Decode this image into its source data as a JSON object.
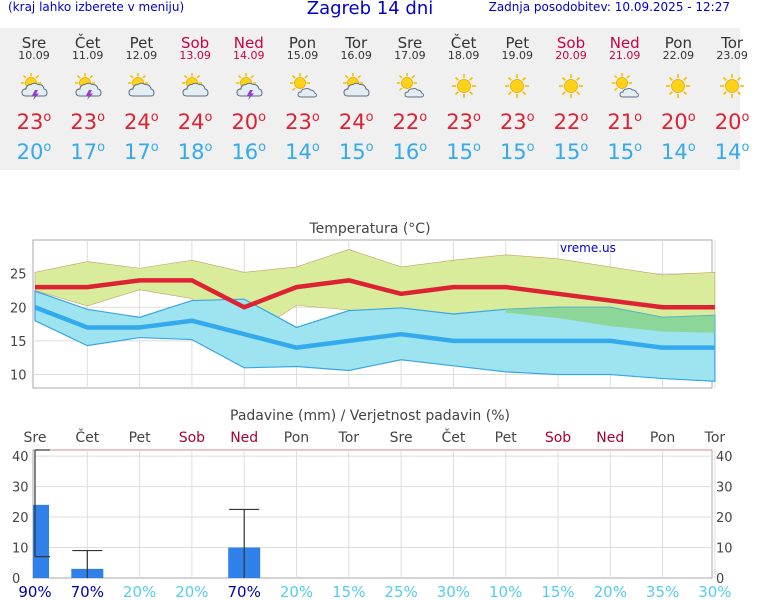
{
  "header": {
    "menu_hint": "(kraj lahko izberete v meniju)",
    "title": "Zagreb 14 dni",
    "updated": "Zadnja posodobitev: 10.09.2025 - 12:27"
  },
  "days": [
    {
      "name": "Sre",
      "date": "10.09",
      "weekend": false,
      "icon": "sun-cloud-storm-icon",
      "tmax": "23",
      "tmin": "20"
    },
    {
      "name": "Čet",
      "date": "11.09",
      "weekend": false,
      "icon": "sun-cloud-storm-icon",
      "tmax": "23",
      "tmin": "17"
    },
    {
      "name": "Pet",
      "date": "12.09",
      "weekend": false,
      "icon": "sun-cloud-icon",
      "tmax": "24",
      "tmin": "17"
    },
    {
      "name": "Sob",
      "date": "13.09",
      "weekend": true,
      "icon": "sun-cloud-icon",
      "tmax": "24",
      "tmin": "18"
    },
    {
      "name": "Ned",
      "date": "14.09",
      "weekend": true,
      "icon": "sun-cloud-storm-icon",
      "tmax": "20",
      "tmin": "16"
    },
    {
      "name": "Pon",
      "date": "15.09",
      "weekend": false,
      "icon": "sun-small-cloud-icon",
      "tmax": "23",
      "tmin": "14"
    },
    {
      "name": "Tor",
      "date": "16.09",
      "weekend": false,
      "icon": "sun-cloud-icon",
      "tmax": "24",
      "tmin": "15"
    },
    {
      "name": "Sre",
      "date": "17.09",
      "weekend": false,
      "icon": "sun-small-cloud-icon",
      "tmax": "22",
      "tmin": "16"
    },
    {
      "name": "Čet",
      "date": "18.09",
      "weekend": false,
      "icon": "sun-icon",
      "tmax": "23",
      "tmin": "15"
    },
    {
      "name": "Pet",
      "date": "19.09",
      "weekend": false,
      "icon": "sun-icon",
      "tmax": "23",
      "tmin": "15"
    },
    {
      "name": "Sob",
      "date": "20.09",
      "weekend": true,
      "icon": "sun-icon",
      "tmax": "22",
      "tmin": "15"
    },
    {
      "name": "Ned",
      "date": "21.09",
      "weekend": true,
      "icon": "sun-small-cloud-icon",
      "tmax": "21",
      "tmin": "15"
    },
    {
      "name": "Pon",
      "date": "22.09",
      "weekend": false,
      "icon": "sun-icon",
      "tmax": "20",
      "tmin": "14"
    },
    {
      "name": "Tor",
      "date": "23.09",
      "weekend": false,
      "icon": "sun-icon",
      "tmax": "20",
      "tmin": "14"
    }
  ],
  "colors": {
    "tmax": "#dd2233",
    "tmin": "#33aaee",
    "max_band": "#d8ec9c",
    "min_band": "#9ee4f0",
    "overlap_band": "#88d48a",
    "bar": "#2f80e8",
    "weekend": "#aa0033",
    "prob_high": "#0000aa",
    "prob_low": "#55ccf0"
  },
  "chart_data": [
    {
      "type": "line",
      "title": "Temperatura (°C)",
      "watermark": "vreme.us",
      "x": [
        "Sre",
        "Čet",
        "Pet",
        "Sob",
        "Ned",
        "Pon",
        "Tor",
        "Sre",
        "Čet",
        "Pet",
        "Sob",
        "Ned",
        "Pon",
        "Tor"
      ],
      "ylim": [
        8,
        30
      ],
      "yticks": [
        10,
        15,
        20,
        25
      ],
      "series": [
        {
          "values": [
            23,
            23,
            24,
            24,
            20,
            23,
            24,
            22,
            23,
            23,
            22,
            21,
            20,
            20
          ]
        },
        {
          "values": [
            20,
            17,
            17,
            18,
            16,
            14,
            15,
            16,
            15,
            15,
            15,
            15,
            14,
            14
          ]
        }
      ],
      "max_band": {
        "upper": [
          25.2,
          26.8,
          25.8,
          27,
          25.2,
          26,
          28.6,
          26,
          27,
          27.8,
          27.2,
          26,
          24.8,
          25.2
        ],
        "lower": [
          22.5,
          20.2,
          22.6,
          21.3,
          15.2,
          20.3,
          19.6,
          18.7,
          19,
          19.2,
          18.4,
          17.2,
          16.4,
          16.2
        ]
      },
      "min_band": {
        "upper": [
          22.4,
          19.7,
          18.5,
          21,
          21.2,
          17,
          19.5,
          19.9,
          19,
          19.7,
          20,
          20,
          18.5,
          18.8
        ],
        "lower": [
          18,
          14.3,
          15.5,
          15.2,
          11,
          11.2,
          10.6,
          12.2,
          11.3,
          10.4,
          10,
          10,
          9.4,
          9
        ]
      }
    },
    {
      "type": "bar",
      "title": "Padavine (mm) / Verjetnost padavin (%)",
      "x": [
        "Sre",
        "Čet",
        "Pet",
        "Sob",
        "Ned",
        "Pon",
        "Tor",
        "Sre",
        "Čet",
        "Pet",
        "Sob",
        "Ned",
        "Pon",
        "Tor"
      ],
      "ylim": [
        0,
        42
      ],
      "yticks": [
        0,
        10,
        20,
        30,
        40
      ],
      "values": [
        24,
        3,
        0,
        0,
        10,
        0,
        0,
        0,
        0,
        0,
        0,
        0,
        0,
        0
      ],
      "error_range": [
        [
          7,
          42
        ],
        [
          0,
          9
        ],
        null,
        null,
        [
          0,
          22.5
        ],
        null,
        null,
        null,
        null,
        null,
        null,
        null,
        null,
        null
      ],
      "probability": [
        "90%",
        "70%",
        "20%",
        "20%",
        "70%",
        "20%",
        "15%",
        "25%",
        "30%",
        "10%",
        "15%",
        "20%",
        "35%",
        "30%"
      ]
    }
  ]
}
